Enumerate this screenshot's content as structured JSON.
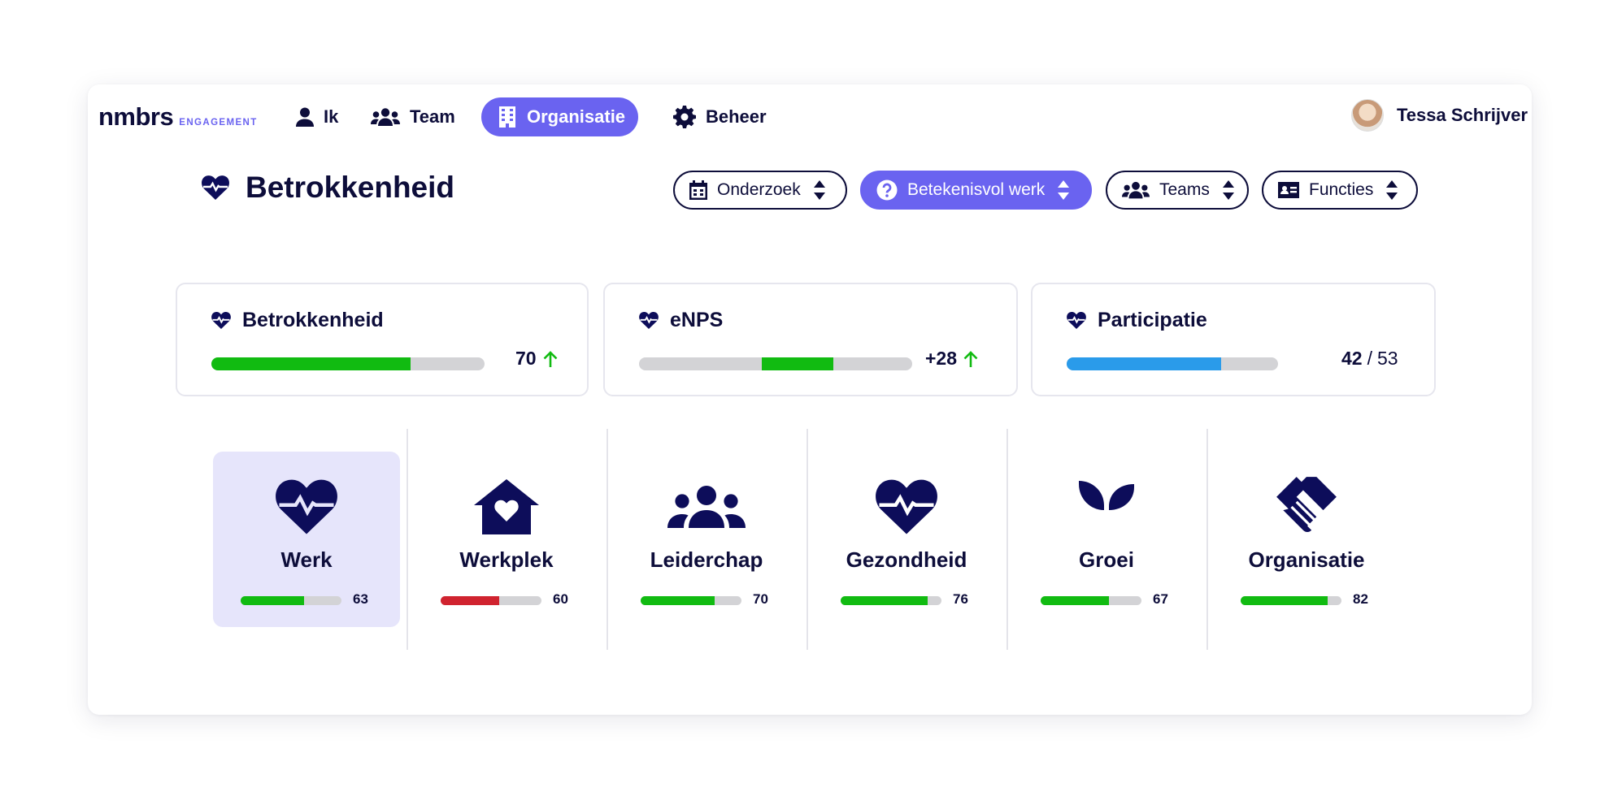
{
  "nav": {
    "logo": "nmbrs",
    "logo_sub": "ENGAGEMENT",
    "items": [
      {
        "label": "Ik",
        "icon": "user-icon"
      },
      {
        "label": "Team",
        "icon": "users-icon"
      },
      {
        "label": "Organisatie",
        "icon": "building-icon",
        "active": true
      },
      {
        "label": "Beheer",
        "icon": "gear-icon"
      }
    ],
    "user_name": "Tessa Schrijver"
  },
  "page": {
    "title": "Betrokkenheid",
    "icon": "heart-pulse-icon"
  },
  "filters": [
    {
      "label": "Onderzoek",
      "icon": "calendar-icon"
    },
    {
      "label": "Betekenisvol werk",
      "icon": "question-icon",
      "active": true
    },
    {
      "label": "Teams",
      "icon": "users-icon"
    },
    {
      "label": "Functies",
      "icon": "id-card-icon"
    }
  ],
  "metrics": [
    {
      "title": "Betrokkenheid",
      "value": "70",
      "trend": "up",
      "progress": 0.73,
      "color": "#11bb11"
    },
    {
      "title": "eNPS",
      "value": "+28",
      "trend": "up",
      "progress_from": 0.45,
      "progress_to": 0.71,
      "color": "#11bb11"
    },
    {
      "title": "Participatie",
      "value": "42",
      "separator": "/",
      "total": "53",
      "progress": 0.73,
      "color": "#2a9bea"
    }
  ],
  "categories": [
    {
      "label": "Werk",
      "value": "63",
      "progress": 0.63,
      "color": "#11bb11",
      "icon": "heart-pulse-icon",
      "selected": true
    },
    {
      "label": "Werkplek",
      "value": "60",
      "progress": 0.58,
      "color": "#d0232f",
      "icon": "house-heart-icon"
    },
    {
      "label": "Leiderchap",
      "value": "70",
      "progress": 0.73,
      "color": "#11bb11",
      "icon": "people-group-icon"
    },
    {
      "label": "Gezondheid",
      "value": "76",
      "progress": 0.86,
      "color": "#11bb11",
      "icon": "heart-pulse-icon"
    },
    {
      "label": "Groei",
      "value": "67",
      "progress": 0.68,
      "color": "#11bb11",
      "icon": "seedling-icon"
    },
    {
      "label": "Organisatie",
      "value": "82",
      "progress": 0.86,
      "color": "#11bb11",
      "icon": "handshake-icon"
    }
  ],
  "colors": {
    "accent": "#6a63f0",
    "navy": "#0d0d3a",
    "green": "#11bb11",
    "red": "#d0232f",
    "blue": "#2a9bea"
  }
}
